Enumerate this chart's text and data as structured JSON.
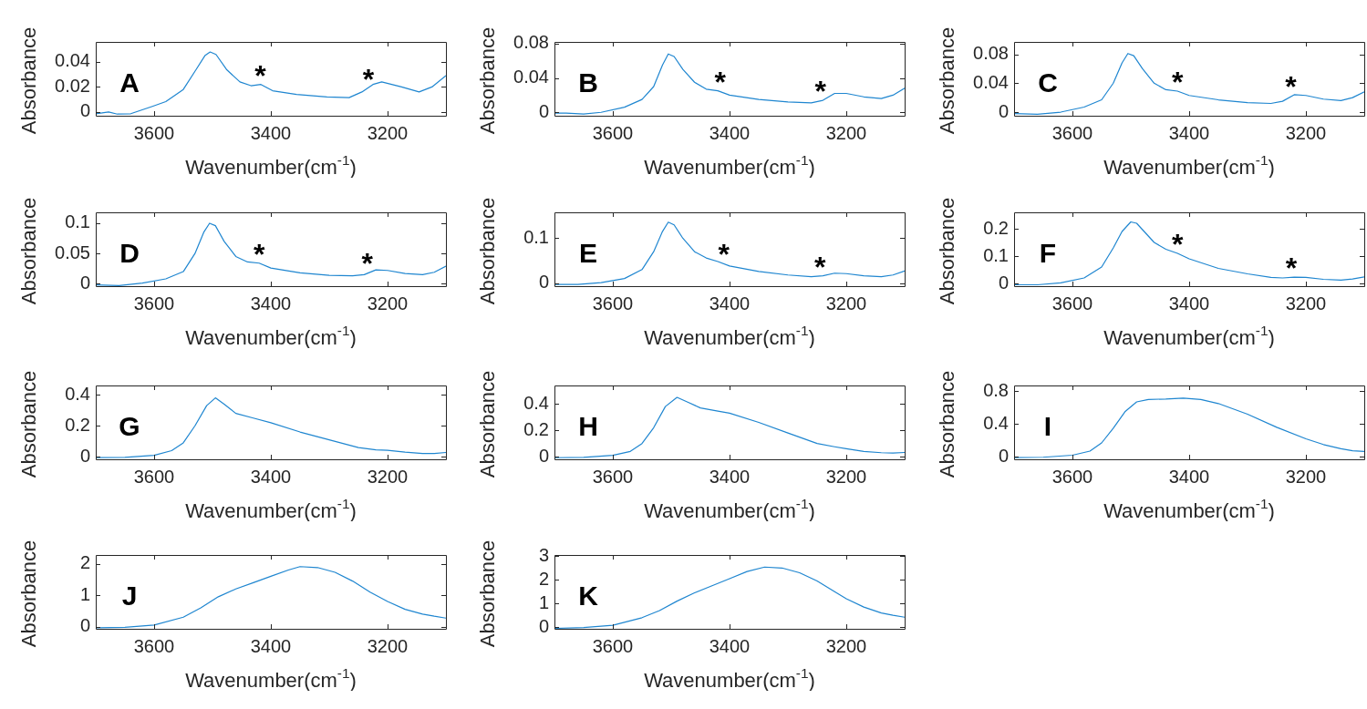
{
  "chart_data": [
    {
      "type": "line",
      "xlabel": "Wavenumber(cm$^{-1}$)",
      "ylabel": "Absorbance",
      "color": "#1f86d0",
      "xlim": [
        3700,
        3100
      ],
      "xticks": [
        3600,
        3400,
        3200
      ],
      "ylim": [
        -0.003,
        0.056
      ],
      "yticks": [
        0,
        0.02,
        0.04
      ],
      "annotations": [
        "A",
        {
          "text": "*",
          "x": 3418,
          "y": 0.022
        },
        {
          "text": "*",
          "x": 3233,
          "y": 0.019
        }
      ],
      "x": [
        3700,
        3678,
        3663,
        3640,
        3603,
        3580,
        3550,
        3528,
        3513,
        3504,
        3494,
        3476,
        3453,
        3434,
        3417,
        3397,
        3356,
        3304,
        3266,
        3244,
        3225,
        3210,
        3176,
        3146,
        3124,
        3100
      ],
      "values": [
        -0.0014,
        0,
        -0.0017,
        -0.0014,
        0.0045,
        0.0083,
        0.018,
        0.034,
        0.045,
        0.048,
        0.046,
        0.034,
        0.024,
        0.021,
        0.022,
        0.017,
        0.014,
        0.012,
        0.0115,
        0.016,
        0.022,
        0.024,
        0.02,
        0.016,
        0.02,
        0.029
      ]
    },
    {
      "type": "line",
      "xlabel": "Wavenumber(cm$^{-1}$)",
      "ylabel": "Absorbance",
      "color": "#1f86d0",
      "xlim": [
        3700,
        3100
      ],
      "xticks": [
        3600,
        3400,
        3200
      ],
      "ylim": [
        -0.004,
        0.082
      ],
      "yticks": [
        0,
        0.04,
        0.08
      ],
      "annotations": [
        "B",
        {
          "text": "*",
          "x": 3416,
          "y": 0.024
        },
        {
          "text": "*",
          "x": 3244,
          "y": 0.014
        }
      ],
      "x": [
        3700,
        3680,
        3650,
        3620,
        3580,
        3550,
        3530,
        3515,
        3505,
        3495,
        3480,
        3460,
        3440,
        3420,
        3400,
        3350,
        3300,
        3260,
        3240,
        3220,
        3200,
        3170,
        3140,
        3120,
        3100
      ],
      "values": [
        -0.001,
        -0.001,
        -0.002,
        0,
        0.006,
        0.015,
        0.03,
        0.055,
        0.068,
        0.065,
        0.05,
        0.035,
        0.027,
        0.025,
        0.02,
        0.015,
        0.012,
        0.011,
        0.014,
        0.022,
        0.022,
        0.018,
        0.016,
        0.02,
        0.028
      ]
    },
    {
      "type": "line",
      "xlabel": "Wavenumber(cm$^{-1}$)",
      "ylabel": "Absorbance",
      "color": "#1f86d0",
      "xlim": [
        3700,
        3100
      ],
      "xticks": [
        3600,
        3400,
        3200
      ],
      "ylim": [
        -0.005,
        0.097
      ],
      "yticks": [
        0,
        0.04,
        0.08
      ],
      "annotations": [
        "C",
        {
          "text": "*",
          "x": 3420,
          "y": 0.029
        },
        {
          "text": "*",
          "x": 3226,
          "y": 0.022
        }
      ],
      "x": [
        3700,
        3660,
        3620,
        3580,
        3550,
        3530,
        3515,
        3505,
        3495,
        3480,
        3460,
        3440,
        3420,
        3400,
        3350,
        3300,
        3260,
        3240,
        3220,
        3200,
        3170,
        3140,
        3120,
        3100
      ],
      "values": [
        -0.002,
        -0.003,
        0,
        0.007,
        0.017,
        0.04,
        0.068,
        0.081,
        0.078,
        0.06,
        0.04,
        0.031,
        0.029,
        0.023,
        0.017,
        0.013,
        0.012,
        0.015,
        0.024,
        0.023,
        0.018,
        0.016,
        0.02,
        0.028
      ]
    },
    {
      "type": "line",
      "xlabel": "Wavenumber(cm$^{-1}$)",
      "ylabel": "Absorbance",
      "color": "#1f86d0",
      "xlim": [
        3700,
        3100
      ],
      "xticks": [
        3600,
        3400,
        3200
      ],
      "ylim": [
        -0.004,
        0.118
      ],
      "yticks": [
        0,
        0.05,
        0.1
      ],
      "annotations": [
        "D",
        {
          "text": "*",
          "x": 3420,
          "y": 0.034
        },
        {
          "text": "*",
          "x": 3235,
          "y": 0.018
        }
      ],
      "x": [
        3700,
        3660,
        3620,
        3580,
        3550,
        3530,
        3515,
        3505,
        3495,
        3480,
        3460,
        3440,
        3420,
        3400,
        3350,
        3300,
        3260,
        3240,
        3220,
        3200,
        3170,
        3140,
        3120,
        3100
      ],
      "values": [
        -0.002,
        -0.003,
        0.001,
        0.008,
        0.02,
        0.05,
        0.085,
        0.1,
        0.096,
        0.07,
        0.045,
        0.036,
        0.034,
        0.026,
        0.018,
        0.014,
        0.013,
        0.015,
        0.023,
        0.022,
        0.017,
        0.015,
        0.019,
        0.029
      ]
    },
    {
      "type": "line",
      "xlabel": "Wavenumber(cm$^{-1}$)",
      "ylabel": "Absorbance",
      "color": "#1f86d0",
      "xlim": [
        3700,
        3100
      ],
      "xticks": [
        3600,
        3400,
        3200
      ],
      "ylim": [
        -0.007,
        0.158
      ],
      "yticks": [
        0,
        0.1
      ],
      "annotations": [
        "E",
        {
          "text": "*",
          "x": 3410,
          "y": 0.043
        },
        {
          "text": "*",
          "x": 3245,
          "y": 0.015
        }
      ],
      "x": [
        3700,
        3660,
        3620,
        3580,
        3550,
        3530,
        3515,
        3505,
        3495,
        3480,
        3460,
        3440,
        3420,
        3400,
        3350,
        3300,
        3260,
        3240,
        3220,
        3200,
        3170,
        3140,
        3120,
        3100
      ],
      "values": [
        -0.003,
        -0.003,
        0.001,
        0.01,
        0.03,
        0.07,
        0.115,
        0.136,
        0.13,
        0.1,
        0.07,
        0.056,
        0.048,
        0.038,
        0.026,
        0.018,
        0.014,
        0.016,
        0.022,
        0.021,
        0.016,
        0.014,
        0.018,
        0.027
      ]
    },
    {
      "type": "line",
      "xlabel": "Wavenumber(cm$^{-1}$)",
      "ylabel": "Absorbance",
      "color": "#1f86d0",
      "xlim": [
        3700,
        3100
      ],
      "xticks": [
        3600,
        3400,
        3200
      ],
      "ylim": [
        -0.01,
        0.26
      ],
      "yticks": [
        0,
        0.1,
        0.2
      ],
      "annotations": [
        "F",
        {
          "text": "*",
          "x": 3420,
          "y": 0.11
        },
        {
          "text": "*",
          "x": 3225,
          "y": 0.022
        }
      ],
      "x": [
        3700,
        3660,
        3620,
        3580,
        3550,
        3530,
        3515,
        3500,
        3490,
        3475,
        3460,
        3440,
        3420,
        3400,
        3350,
        3300,
        3260,
        3240,
        3220,
        3200,
        3170,
        3140,
        3120,
        3100
      ],
      "values": [
        -0.005,
        -0.005,
        0.002,
        0.02,
        0.06,
        0.13,
        0.19,
        0.225,
        0.22,
        0.185,
        0.15,
        0.125,
        0.11,
        0.09,
        0.055,
        0.035,
        0.022,
        0.02,
        0.023,
        0.022,
        0.015,
        0.012,
        0.016,
        0.024
      ]
    },
    {
      "type": "line",
      "xlabel": "Wavenumber(cm$^{-1}$)",
      "ylabel": "Absorbance",
      "color": "#1f86d0",
      "xlim": [
        3700,
        3100
      ],
      "xticks": [
        3600,
        3400,
        3200
      ],
      "ylim": [
        -0.016,
        0.46
      ],
      "yticks": [
        0,
        0.2,
        0.4
      ],
      "annotations": [
        "G"
      ],
      "x": [
        3700,
        3650,
        3600,
        3570,
        3550,
        3530,
        3510,
        3495,
        3480,
        3460,
        3430,
        3400,
        3350,
        3300,
        3250,
        3220,
        3200,
        3170,
        3140,
        3120,
        3100
      ],
      "values": [
        -0.005,
        -0.003,
        0.01,
        0.04,
        0.09,
        0.2,
        0.33,
        0.38,
        0.34,
        0.28,
        0.25,
        0.22,
        0.16,
        0.11,
        0.06,
        0.045,
        0.042,
        0.03,
        0.022,
        0.022,
        0.028
      ]
    },
    {
      "type": "line",
      "xlabel": "Wavenumber(cm$^{-1}$)",
      "ylabel": "Absorbance",
      "color": "#1f86d0",
      "xlim": [
        3700,
        3100
      ],
      "xticks": [
        3600,
        3400,
        3200
      ],
      "ylim": [
        -0.02,
        0.54
      ],
      "yticks": [
        0,
        0.2,
        0.4
      ],
      "annotations": [
        "H"
      ],
      "x": [
        3700,
        3650,
        3600,
        3570,
        3550,
        3530,
        3510,
        3490,
        3470,
        3450,
        3420,
        3400,
        3350,
        3300,
        3250,
        3220,
        3200,
        3170,
        3140,
        3120,
        3100
      ],
      "values": [
        -0.008,
        -0.005,
        0.01,
        0.04,
        0.1,
        0.22,
        0.38,
        0.45,
        0.41,
        0.37,
        0.345,
        0.33,
        0.26,
        0.18,
        0.1,
        0.075,
        0.06,
        0.04,
        0.03,
        0.028,
        0.032
      ]
    },
    {
      "type": "line",
      "xlabel": "Wavenumber(cm$^{-1}$)",
      "ylabel": "Absorbance",
      "color": "#1f86d0",
      "xlim": [
        3700,
        3100
      ],
      "xticks": [
        3600,
        3400,
        3200
      ],
      "ylim": [
        -0.03,
        0.87
      ],
      "yticks": [
        0,
        0.4,
        0.8
      ],
      "annotations": [
        "I"
      ],
      "x": [
        3700,
        3650,
        3600,
        3570,
        3550,
        3530,
        3510,
        3490,
        3470,
        3440,
        3410,
        3380,
        3350,
        3300,
        3250,
        3200,
        3170,
        3140,
        3120,
        3100
      ],
      "values": [
        -0.01,
        -0.005,
        0.02,
        0.07,
        0.17,
        0.35,
        0.55,
        0.67,
        0.7,
        0.705,
        0.715,
        0.7,
        0.65,
        0.52,
        0.36,
        0.22,
        0.15,
        0.1,
        0.075,
        0.065
      ]
    },
    {
      "type": "line",
      "xlabel": "Wavenumber(cm$^{-1}$)",
      "ylabel": "Absorbance",
      "color": "#1f86d0",
      "xlim": [
        3700,
        3100
      ],
      "xticks": [
        3600,
        3400,
        3200
      ],
      "ylim": [
        -0.07,
        2.28
      ],
      "yticks": [
        0,
        1,
        2
      ],
      "annotations": [
        "J"
      ],
      "x": [
        3700,
        3650,
        3600,
        3550,
        3520,
        3490,
        3460,
        3430,
        3400,
        3370,
        3350,
        3320,
        3290,
        3260,
        3230,
        3200,
        3170,
        3140,
        3120,
        3100
      ],
      "values": [
        -0.04,
        -0.02,
        0.05,
        0.3,
        0.6,
        0.95,
        1.2,
        1.4,
        1.6,
        1.8,
        1.91,
        1.88,
        1.73,
        1.45,
        1.1,
        0.8,
        0.55,
        0.4,
        0.33,
        0.27
      ]
    },
    {
      "type": "line",
      "xlabel": "Wavenumber(cm$^{-1}$)",
      "ylabel": "Absorbance",
      "color": "#1f86d0",
      "xlim": [
        3700,
        3100
      ],
      "xticks": [
        3600,
        3400,
        3200
      ],
      "ylim": [
        -0.07,
        3.05
      ],
      "yticks": [
        0,
        1,
        2,
        3
      ],
      "annotations": [
        "K"
      ],
      "x": [
        3700,
        3650,
        3600,
        3550,
        3520,
        3490,
        3460,
        3430,
        3400,
        3370,
        3340,
        3310,
        3280,
        3250,
        3220,
        3200,
        3170,
        3140,
        3120,
        3100
      ],
      "values": [
        -0.05,
        -0.02,
        0.08,
        0.4,
        0.7,
        1.1,
        1.45,
        1.75,
        2.05,
        2.35,
        2.54,
        2.5,
        2.3,
        1.95,
        1.5,
        1.2,
        0.85,
        0.6,
        0.5,
        0.42
      ]
    }
  ]
}
